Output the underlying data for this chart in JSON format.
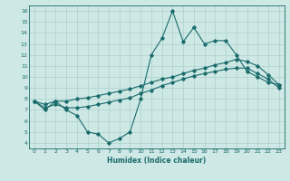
{
  "title": "",
  "xlabel": "Humidex (Indice chaleur)",
  "bg_color": "#cde8e5",
  "line_color": "#1a6b6b",
  "grid_color": "#aed0cc",
  "xlim": [
    -0.5,
    23.5
  ],
  "ylim": [
    3.5,
    16.5
  ],
  "xticks": [
    0,
    1,
    2,
    3,
    4,
    5,
    6,
    7,
    8,
    9,
    10,
    11,
    12,
    13,
    14,
    15,
    16,
    17,
    18,
    19,
    20,
    21,
    22,
    23
  ],
  "yticks": [
    4,
    5,
    6,
    7,
    8,
    9,
    10,
    11,
    12,
    13,
    14,
    15,
    16
  ],
  "series": [
    {
      "x": [
        0,
        1,
        2,
        3,
        4,
        5,
        6,
        7,
        8,
        9,
        10,
        11,
        12,
        13,
        14,
        15,
        16,
        17,
        18,
        19,
        20,
        21,
        22,
        23
      ],
      "y": [
        7.8,
        7.0,
        7.8,
        7.0,
        6.5,
        5.0,
        4.8,
        4.0,
        4.4,
        5.0,
        8.0,
        12.0,
        13.5,
        16.0,
        13.2,
        14.5,
        13.0,
        13.3,
        13.3,
        12.0,
        10.5,
        10.0,
        9.5,
        9.3
      ]
    },
    {
      "x": [
        0,
        1,
        2,
        3,
        4,
        5,
        6,
        7,
        8,
        9,
        10,
        11,
        12,
        13,
        14,
        15,
        16,
        17,
        18,
        19,
        20,
        21,
        22,
        23
      ],
      "y": [
        7.8,
        7.2,
        7.5,
        7.2,
        7.2,
        7.3,
        7.5,
        7.7,
        7.9,
        8.1,
        8.5,
        8.8,
        9.2,
        9.5,
        9.8,
        10.1,
        10.3,
        10.5,
        10.7,
        10.8,
        10.8,
        10.3,
        9.8,
        9.0
      ]
    },
    {
      "x": [
        0,
        1,
        2,
        3,
        4,
        5,
        6,
        7,
        8,
        9,
        10,
        11,
        12,
        13,
        14,
        15,
        16,
        17,
        18,
        19,
        20,
        21,
        22,
        23
      ],
      "y": [
        7.8,
        7.5,
        7.8,
        7.8,
        8.0,
        8.1,
        8.3,
        8.5,
        8.7,
        8.9,
        9.2,
        9.5,
        9.8,
        10.0,
        10.3,
        10.6,
        10.8,
        11.1,
        11.3,
        11.6,
        11.4,
        11.0,
        10.2,
        9.3
      ]
    }
  ]
}
